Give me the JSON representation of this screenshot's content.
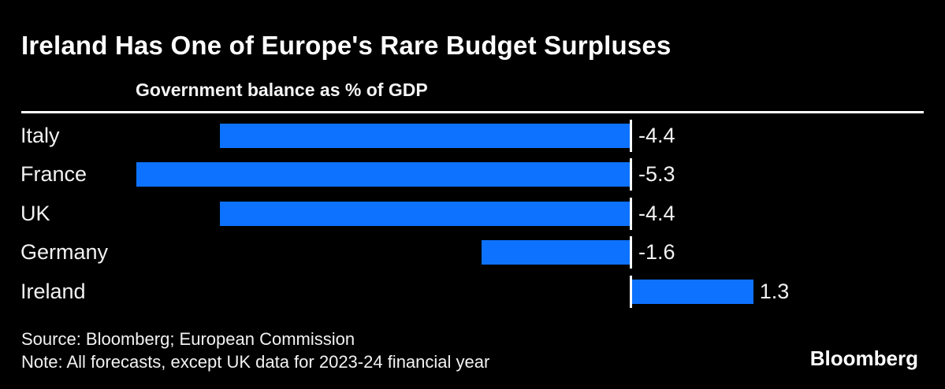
{
  "header": {
    "title": "Ireland Has One of Europe's Rare Budget Surpluses",
    "subtitle": "Government balance as % of GDP"
  },
  "chart_data": {
    "type": "bar",
    "orientation": "horizontal",
    "title": "Government balance as % of GDP",
    "categories": [
      "Italy",
      "France",
      "UK",
      "Germany",
      "Ireland"
    ],
    "values": [
      -4.4,
      -5.3,
      -4.4,
      -1.6,
      1.3
    ],
    "value_labels": [
      "-4.4",
      "-5.3",
      "-4.4",
      "-1.6",
      "1.3"
    ],
    "xlim": [
      -6.5,
      3.1
    ],
    "grid": false,
    "legend": false,
    "zero_line": true,
    "bar_color": "#0d72ff",
    "zero_line_color": "#ffffff",
    "label_color": "#f2f2f2"
  },
  "footer": {
    "source": "Source: Bloomberg; European Commission",
    "note": "Note: All forecasts, except UK data for 2023-24 financial year",
    "brand": "Bloomberg"
  },
  "colors": {
    "background": "#000000",
    "title_text": "#ffffff",
    "bar_blue": "#0d72ff",
    "rule_white": "#ffffff"
  }
}
